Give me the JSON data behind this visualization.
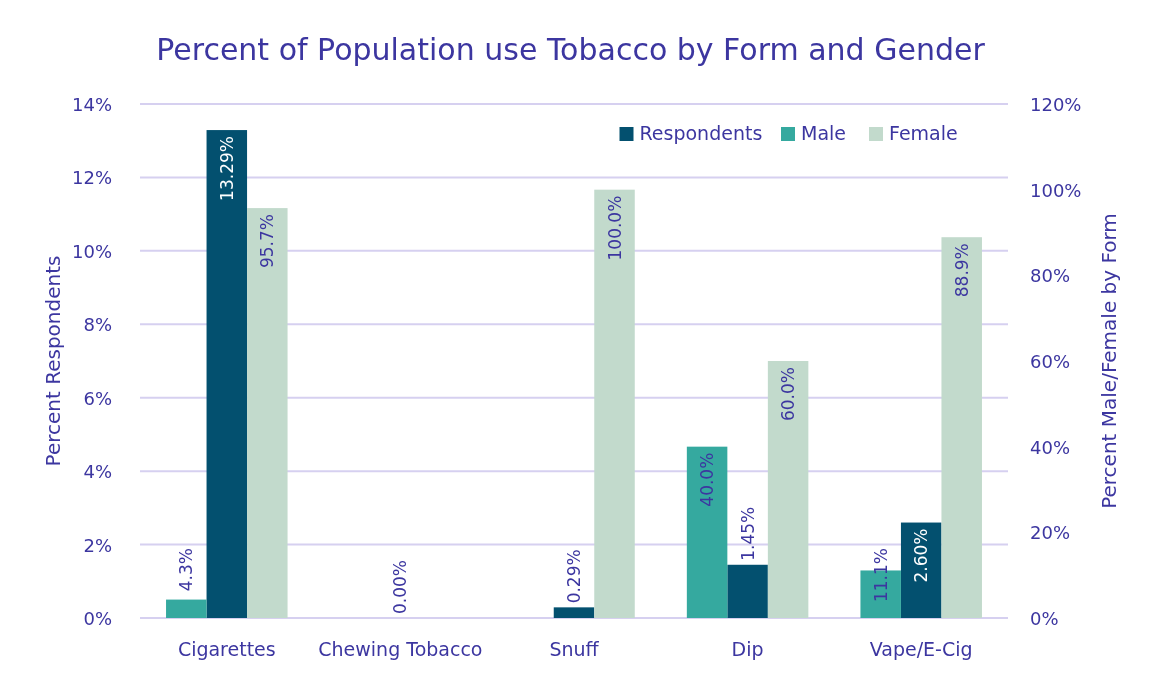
{
  "chart_data": {
    "type": "bar",
    "title": "Percent of Population use Tobacco by Form and Gender",
    "ylabel": "Percent Respondents",
    "y2label": "Percent Male/Female by Form",
    "categories": [
      "Cigarettes",
      "Chewing Tobacco",
      "Snuff",
      "Dip",
      "Vape/E-Cig"
    ],
    "series": [
      {
        "name": "Respondents",
        "color": "#03506f",
        "values": [
          13.29,
          0,
          0.29,
          1.45,
          2.6
        ],
        "value_labels": [
          "13.29%",
          "0.00%",
          "0.29%",
          "1.45%",
          "2.60%"
        ]
      },
      {
        "name": "Male",
        "color": "#35a99f",
        "axis": "y2",
        "values": [
          4.3,
          null,
          null,
          40,
          11.1
        ],
        "value_labels": [
          "4.3%",
          null,
          null,
          "40.0%",
          "11.1%"
        ]
      },
      {
        "name": "Female",
        "color": "#c2dacc",
        "axis": "y2",
        "values": [
          95.7,
          null,
          100,
          60,
          88.9
        ],
        "value_labels": [
          "95.7%",
          null,
          "100.0%",
          "60.0%",
          "88.9%"
        ]
      }
    ],
    "ylim": [
      0,
      14
    ],
    "yticks": [
      {
        "value": 0,
        "label": "0%"
      },
      {
        "value": 2,
        "label": "2%"
      },
      {
        "value": 4,
        "label": "4%"
      },
      {
        "value": 6,
        "label": "6%"
      },
      {
        "value": 8,
        "label": "8%"
      },
      {
        "value": 10,
        "label": "10%"
      },
      {
        "value": 12,
        "label": "12%"
      },
      {
        "value": 14,
        "label": "14%"
      }
    ],
    "y2lim": [
      0,
      120
    ],
    "y2ticks": [
      {
        "value": 0,
        "label": "0%"
      },
      {
        "value": 20,
        "label": "20%"
      },
      {
        "value": 40,
        "label": "40%"
      },
      {
        "value": 60,
        "label": "60%"
      },
      {
        "value": 80,
        "label": "80%"
      },
      {
        "value": 100,
        "label": "100%"
      },
      {
        "value": 120,
        "label": "120%"
      }
    ],
    "grid": "y",
    "legend": "top right"
  }
}
